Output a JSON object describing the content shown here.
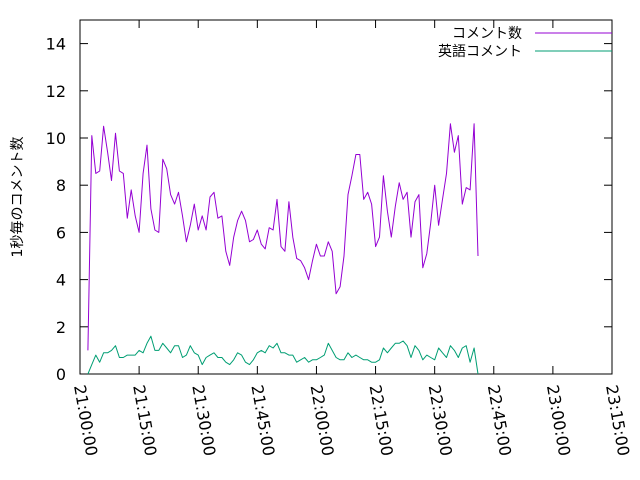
{
  "chart_data": {
    "type": "line",
    "title": "",
    "xlabel": "",
    "ylabel": "1秒毎のコメント数",
    "ylim": [
      0,
      15
    ],
    "xlim_minutes": [
      1260,
      1395
    ],
    "x_ticks": [
      "21:00:00",
      "21:15:00",
      "21:30:00",
      "21:45:00",
      "22:00:00",
      "22:15:00",
      "22:30:00",
      "22:45:00",
      "23:00:00",
      "23:15:00"
    ],
    "y_ticks": [
      "0",
      "2",
      "4",
      "6",
      "8",
      "10",
      "12",
      "14"
    ],
    "grid": false,
    "legend_position": "top-right",
    "x_start": "21:02:00",
    "x_step_seconds": 60,
    "series": [
      {
        "name": "コメント数",
        "color": "#9400d3",
        "values": [
          1.0,
          10.1,
          8.5,
          8.6,
          10.5,
          9.4,
          8.2,
          10.2,
          8.6,
          8.5,
          6.6,
          7.8,
          6.7,
          6.0,
          8.5,
          9.7,
          7.0,
          6.1,
          6.0,
          9.1,
          8.7,
          7.6,
          7.2,
          7.7,
          6.7,
          5.6,
          6.3,
          7.2,
          6.1,
          6.7,
          6.1,
          7.5,
          7.7,
          6.6,
          6.7,
          5.2,
          4.6,
          5.8,
          6.5,
          6.9,
          6.5,
          5.6,
          5.7,
          6.1,
          5.5,
          5.3,
          6.2,
          6.1,
          7.4,
          5.4,
          5.2,
          7.3,
          5.8,
          4.9,
          4.8,
          4.5,
          4.0,
          4.8,
          5.5,
          5.0,
          5.0,
          5.6,
          5.2,
          3.4,
          3.7,
          5.0,
          7.6,
          8.4,
          9.3,
          9.3,
          7.4,
          7.7,
          7.2,
          5.4,
          5.8,
          8.4,
          6.9,
          5.8,
          7.1,
          8.1,
          7.4,
          7.7,
          5.8,
          7.3,
          7.6,
          4.5,
          5.1,
          6.4,
          8.0,
          6.3,
          7.4,
          8.5,
          10.6,
          9.4,
          10.1,
          7.2,
          7.9,
          7.8,
          10.6,
          5.0
        ]
      },
      {
        "name": "英語コメント",
        "color": "#009e73",
        "values": [
          0.0,
          0.4,
          0.8,
          0.5,
          0.9,
          0.9,
          1.0,
          1.2,
          0.7,
          0.7,
          0.8,
          0.8,
          0.8,
          1.0,
          0.9,
          1.3,
          1.6,
          1.0,
          1.0,
          1.3,
          1.1,
          0.9,
          1.2,
          1.2,
          0.7,
          0.8,
          1.2,
          0.9,
          0.8,
          0.4,
          0.7,
          0.8,
          0.9,
          0.7,
          0.7,
          0.5,
          0.4,
          0.6,
          0.9,
          0.8,
          0.5,
          0.4,
          0.6,
          0.9,
          1.0,
          0.9,
          1.2,
          1.1,
          1.3,
          0.9,
          0.9,
          0.8,
          0.8,
          0.5,
          0.6,
          0.7,
          0.5,
          0.6,
          0.6,
          0.7,
          0.8,
          1.3,
          1.0,
          0.7,
          0.6,
          0.6,
          0.9,
          0.7,
          0.8,
          0.7,
          0.6,
          0.6,
          0.5,
          0.5,
          0.6,
          1.1,
          0.9,
          1.1,
          1.3,
          1.3,
          1.4,
          1.2,
          0.7,
          1.2,
          1.0,
          0.6,
          0.8,
          0.7,
          0.6,
          1.1,
          0.9,
          0.7,
          1.2,
          1.0,
          0.7,
          1.1,
          1.2,
          0.5,
          1.1,
          0.0
        ]
      }
    ]
  }
}
